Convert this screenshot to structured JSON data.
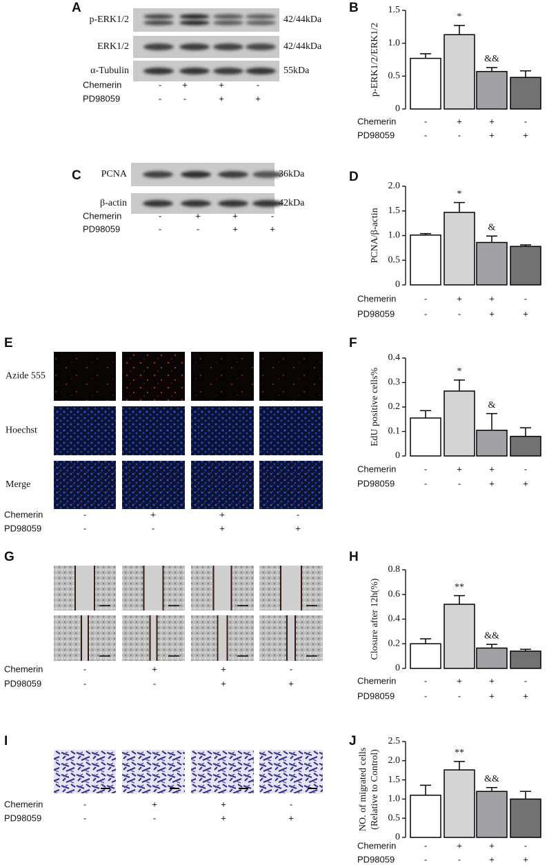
{
  "panels": {
    "A": {
      "letter": "A",
      "rows": [
        {
          "label": "p-ERK1/2",
          "size": "42/44kDa"
        },
        {
          "label": "ERK1/2",
          "size": "42/44kDa"
        },
        {
          "label": "α-Tubulin",
          "size": "55kDa"
        }
      ],
      "treatments": [
        {
          "label": "Chemerin",
          "marks": [
            "-",
            "+",
            "+",
            "-"
          ]
        },
        {
          "label": "PD98059",
          "marks": [
            "-",
            "-",
            "+",
            "+"
          ]
        }
      ]
    },
    "C": {
      "letter": "C",
      "rows": [
        {
          "label": "PCNA",
          "size": "36kDa"
        },
        {
          "label": "β-actin",
          "size": "42kDa"
        }
      ],
      "treatments": [
        {
          "label": "Chemerin",
          "marks": [
            "-",
            "+",
            "+",
            "-"
          ]
        },
        {
          "label": "PD98059",
          "marks": [
            "-",
            "-",
            "+",
            "+"
          ]
        }
      ]
    },
    "E": {
      "letter": "E",
      "rows": [
        "Azide 555",
        "Hoechst",
        "Merge"
      ],
      "treatments": [
        {
          "label": "Chemerin",
          "marks": [
            "-",
            "+",
            "+",
            "-"
          ]
        },
        {
          "label": "PD98059",
          "marks": [
            "-",
            "-",
            "+",
            "+"
          ]
        }
      ]
    },
    "G": {
      "letter": "G",
      "treatments": [
        {
          "label": "Chemerin",
          "marks": [
            "-",
            "+",
            "+",
            "-"
          ]
        },
        {
          "label": "PD98059",
          "marks": [
            "-",
            "-",
            "+",
            "+"
          ]
        }
      ]
    },
    "I": {
      "letter": "I",
      "treatments": [
        {
          "label": "Chemerin",
          "marks": [
            "-",
            "+",
            "+",
            "-"
          ]
        },
        {
          "label": "PD98059",
          "marks": [
            "-",
            "-",
            "+",
            "+"
          ]
        }
      ]
    }
  },
  "chart_data": [
    {
      "type": "bar",
      "letter": "B",
      "ylabel": [
        "p-ERK1/2/ERK1/2"
      ],
      "ylim": [
        0,
        1.5
      ],
      "yticks": [
        0,
        0.5,
        {
          "value": 1,
          "label": "1.0"
        },
        1.5
      ],
      "values": [
        0.77,
        1.13,
        0.57,
        0.48
      ],
      "errors": [
        0.07,
        0.14,
        0.06,
        0.1
      ],
      "colors": [
        "#ffffff",
        "#d4d4d4",
        "#a2a2a6",
        "#727272"
      ],
      "annotations": [
        null,
        "*",
        "&&",
        null
      ],
      "treatments": [
        {
          "label": "Chemerin",
          "marks": [
            "-",
            "+",
            "+",
            "-"
          ]
        },
        {
          "label": "PD98059",
          "marks": [
            "-",
            "-",
            "+",
            "+"
          ]
        }
      ]
    },
    {
      "type": "bar",
      "letter": "D",
      "ylabel": [
        "PCNA/β-actin"
      ],
      "ylim": [
        0,
        2
      ],
      "yticks": [
        0,
        0.5,
        {
          "value": 1,
          "label": "1.0"
        },
        1.5,
        {
          "value": 2,
          "label": "2.0"
        }
      ],
      "values": [
        1.01,
        1.47,
        0.86,
        0.78
      ],
      "errors": [
        0.03,
        0.2,
        0.13,
        0.03
      ],
      "colors": [
        "#ffffff",
        "#d4d4d4",
        "#a2a2a6",
        "#727272"
      ],
      "annotations": [
        null,
        "*",
        "&",
        null
      ],
      "treatments": [
        {
          "label": "Chemerin",
          "marks": [
            "-",
            "+",
            "+",
            "-"
          ]
        },
        {
          "label": "PD98059",
          "marks": [
            "-",
            "-",
            "+",
            "+"
          ]
        }
      ]
    },
    {
      "type": "bar",
      "letter": "F",
      "ylabel": [
        "EdU positive cells%"
      ],
      "ylim": [
        0,
        0.4
      ],
      "yticks": [
        0,
        0.1,
        0.2,
        0.3,
        0.4
      ],
      "values": [
        0.155,
        0.265,
        0.105,
        0.08
      ],
      "errors": [
        0.03,
        0.045,
        0.068,
        0.035
      ],
      "colors": [
        "#ffffff",
        "#d4d4d4",
        "#a2a2a6",
        "#727272"
      ],
      "annotations": [
        null,
        "*",
        "&",
        null
      ],
      "treatments": [
        {
          "label": "Chemerin",
          "marks": [
            "-",
            "+",
            "+",
            "-"
          ]
        },
        {
          "label": "PD98059",
          "marks": [
            "-",
            "-",
            "+",
            "+"
          ]
        }
      ]
    },
    {
      "type": "bar",
      "letter": "H",
      "ylabel": [
        "Closure after 12h(%)"
      ],
      "ylim": [
        0,
        0.8
      ],
      "yticks": [
        0,
        0.2,
        0.4,
        0.6,
        0.8
      ],
      "values": [
        0.2,
        0.52,
        0.165,
        0.14
      ],
      "errors": [
        0.04,
        0.07,
        0.03,
        0.015
      ],
      "colors": [
        "#ffffff",
        "#d4d4d4",
        "#a2a2a6",
        "#727272"
      ],
      "annotations": [
        null,
        "**",
        "&&",
        null
      ],
      "treatments": [
        {
          "label": "Chemerin",
          "marks": [
            "-",
            "+",
            "+",
            "-"
          ]
        },
        {
          "label": "PD98059",
          "marks": [
            "-",
            "-",
            "+",
            "+"
          ]
        }
      ]
    },
    {
      "type": "bar",
      "letter": "J",
      "ylabel": [
        "NO. of migrated cells",
        "(Relative to Control)"
      ],
      "ylim": [
        0,
        2.5
      ],
      "yticks": [
        0,
        0.5,
        {
          "value": 1,
          "label": "1.0"
        },
        1.5,
        {
          "value": 2,
          "label": "2.0"
        },
        2.5
      ],
      "values": [
        1.1,
        1.76,
        1.2,
        1.0
      ],
      "errors": [
        0.26,
        0.22,
        0.1,
        0.2
      ],
      "colors": [
        "#ffffff",
        "#d4d4d4",
        "#a2a2a6",
        "#727272"
      ],
      "annotations": [
        null,
        "**",
        "&&",
        null
      ],
      "treatments": [
        {
          "label": "Chemerin",
          "marks": [
            "-",
            "+",
            "+",
            "-"
          ]
        },
        {
          "label": "PD98059",
          "marks": [
            "-",
            "-",
            "+",
            "+"
          ]
        }
      ]
    }
  ]
}
